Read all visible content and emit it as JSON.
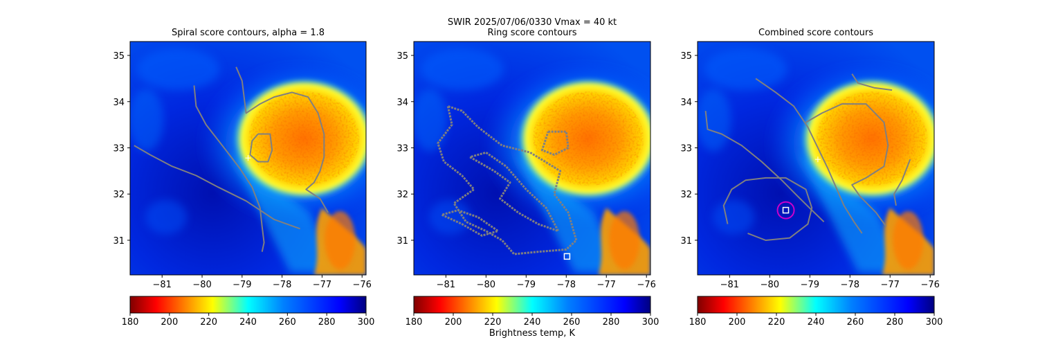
{
  "figure": {
    "suptitle_line1": "SWIR  2025/07/06/0330    Vmax = 40 kt",
    "colorbar_label": "Brightness temp, K"
  },
  "chart_data": [
    {
      "type": "heatmap",
      "title": "Spiral score contours, alpha =  1.8",
      "xlim": [
        -81.8,
        -75.9
      ],
      "ylim": [
        30.25,
        35.3
      ],
      "xticks": [
        -81,
        -80,
        -79,
        -78,
        -77,
        -76
      ],
      "yticks": [
        31,
        32,
        33,
        34,
        35
      ],
      "colorbar": {
        "range": [
          180,
          300
        ],
        "ticks": [
          180,
          200,
          220,
          240,
          260,
          280,
          300
        ],
        "colormap": "jet_r"
      },
      "contour_color": "#808080",
      "contours": [
        [
          [
            -80.2,
            34.35
          ],
          [
            -80.15,
            33.9
          ],
          [
            -79.9,
            33.5
          ],
          [
            -79.45,
            33.0
          ],
          [
            -79.05,
            32.55
          ],
          [
            -78.75,
            32.15
          ],
          [
            -78.55,
            31.7
          ],
          [
            -78.5,
            31.3
          ],
          [
            -78.45,
            30.95
          ],
          [
            -78.5,
            30.75
          ]
        ],
        [
          [
            -81.7,
            33.05
          ],
          [
            -81.3,
            32.85
          ],
          [
            -80.75,
            32.6
          ],
          [
            -80.15,
            32.4
          ],
          [
            -79.6,
            32.15
          ],
          [
            -78.9,
            31.85
          ],
          [
            -78.2,
            31.45
          ],
          [
            -77.55,
            31.25
          ]
        ],
        [
          [
            -79.15,
            34.75
          ],
          [
            -79.0,
            34.45
          ],
          [
            -78.95,
            34.1
          ],
          [
            -78.9,
            33.75
          ],
          [
            -78.55,
            33.95
          ],
          [
            -78.2,
            34.1
          ],
          [
            -77.75,
            34.2
          ],
          [
            -77.35,
            34.1
          ],
          [
            -77.1,
            33.75
          ],
          [
            -76.95,
            33.3
          ],
          [
            -76.95,
            32.8
          ],
          [
            -77.05,
            32.5
          ],
          [
            -77.2,
            32.25
          ],
          [
            -77.4,
            32.1
          ],
          [
            -77.05,
            31.9
          ],
          [
            -76.85,
            31.6
          ]
        ],
        [
          [
            -78.6,
            33.3
          ],
          [
            -78.3,
            33.3
          ],
          [
            -78.25,
            32.95
          ],
          [
            -78.35,
            32.7
          ],
          [
            -78.6,
            32.7
          ],
          [
            -78.8,
            32.85
          ],
          [
            -78.75,
            33.15
          ],
          [
            -78.6,
            33.3
          ]
        ]
      ],
      "markers": [
        {
          "shape": "plus",
          "x": -78.85,
          "y": 32.78,
          "color": "#ffffff"
        }
      ]
    },
    {
      "type": "heatmap",
      "title": "Ring score contours",
      "xlim": [
        -81.8,
        -75.9
      ],
      "ylim": [
        30.25,
        35.3
      ],
      "xticks": [
        -81,
        -80,
        -79,
        -78,
        -77,
        -76
      ],
      "yticks": [
        31,
        32,
        33,
        34,
        35
      ],
      "colorbar": {
        "range": [
          180,
          300
        ],
        "ticks": [
          180,
          200,
          220,
          240,
          260,
          280,
          300
        ],
        "colormap": "jet_r"
      },
      "contour_color": "#808080",
      "contours": [
        [
          [
            -80.95,
            33.9
          ],
          [
            -80.85,
            33.5
          ],
          [
            -81.2,
            33.1
          ],
          [
            -81.05,
            32.7
          ],
          [
            -80.6,
            32.4
          ],
          [
            -80.3,
            32.1
          ],
          [
            -80.8,
            31.8
          ],
          [
            -80.5,
            31.4
          ],
          [
            -80.0,
            31.2
          ],
          [
            -79.6,
            31.0
          ],
          [
            -79.3,
            30.7
          ],
          [
            -78.7,
            30.75
          ],
          [
            -78.0,
            30.8
          ],
          [
            -77.75,
            31.0
          ],
          [
            -77.95,
            31.6
          ],
          [
            -78.3,
            32.0
          ],
          [
            -78.15,
            32.5
          ],
          [
            -78.9,
            32.9
          ],
          [
            -79.6,
            33.05
          ],
          [
            -80.2,
            33.45
          ],
          [
            -80.6,
            33.8
          ],
          [
            -80.95,
            33.9
          ]
        ],
        [
          [
            -80.4,
            32.8
          ],
          [
            -79.8,
            32.5
          ],
          [
            -79.4,
            32.25
          ],
          [
            -79.65,
            31.9
          ],
          [
            -79.2,
            31.6
          ],
          [
            -78.7,
            31.35
          ],
          [
            -78.2,
            31.2
          ],
          [
            -78.5,
            31.7
          ],
          [
            -79.0,
            32.1
          ],
          [
            -79.5,
            32.6
          ],
          [
            -80.0,
            32.9
          ],
          [
            -80.4,
            32.8
          ]
        ],
        [
          [
            -78.45,
            33.35
          ],
          [
            -78.0,
            33.35
          ],
          [
            -77.95,
            33.0
          ],
          [
            -78.3,
            32.85
          ],
          [
            -78.6,
            32.95
          ],
          [
            -78.45,
            33.35
          ]
        ],
        [
          [
            -81.1,
            31.55
          ],
          [
            -80.6,
            31.35
          ],
          [
            -80.1,
            31.1
          ],
          [
            -79.7,
            31.2
          ],
          [
            -80.2,
            31.5
          ],
          [
            -80.7,
            31.65
          ],
          [
            -81.1,
            31.55
          ]
        ]
      ],
      "markers": [
        {
          "shape": "square",
          "x": -77.98,
          "y": 30.65,
          "color": "#ffffff"
        }
      ]
    },
    {
      "type": "heatmap",
      "title": "Combined score contours",
      "xlim": [
        -81.8,
        -75.9
      ],
      "ylim": [
        30.25,
        35.3
      ],
      "xticks": [
        -81,
        -80,
        -79,
        -78,
        -77,
        -76
      ],
      "yticks": [
        31,
        32,
        33,
        34,
        35
      ],
      "colorbar": {
        "range": [
          180,
          300
        ],
        "ticks": [
          180,
          200,
          220,
          240,
          260,
          280,
          300
        ],
        "colormap": "jet_r"
      },
      "contour_color": "#808080",
      "contours": [
        [
          [
            -80.35,
            34.5
          ],
          [
            -79.85,
            34.2
          ],
          [
            -79.4,
            33.9
          ],
          [
            -79.05,
            33.45
          ],
          [
            -78.8,
            33.0
          ],
          [
            -78.55,
            32.55
          ],
          [
            -78.35,
            32.15
          ],
          [
            -78.15,
            31.75
          ],
          [
            -77.9,
            31.4
          ],
          [
            -77.7,
            31.15
          ]
        ],
        [
          [
            -81.6,
            33.8
          ],
          [
            -81.55,
            33.4
          ],
          [
            -81.2,
            33.3
          ],
          [
            -80.7,
            33.05
          ],
          [
            -80.2,
            32.7
          ],
          [
            -79.7,
            32.3
          ],
          [
            -79.3,
            31.95
          ],
          [
            -78.95,
            31.65
          ],
          [
            -78.65,
            31.4
          ]
        ],
        [
          [
            -77.95,
            34.6
          ],
          [
            -77.8,
            34.4
          ],
          [
            -77.4,
            34.3
          ],
          [
            -76.95,
            34.25
          ]
        ],
        [
          [
            -79.1,
            33.55
          ],
          [
            -78.7,
            33.75
          ],
          [
            -78.2,
            33.95
          ],
          [
            -77.6,
            33.95
          ],
          [
            -77.15,
            33.55
          ],
          [
            -77.05,
            33.05
          ],
          [
            -77.15,
            32.6
          ],
          [
            -77.6,
            32.35
          ],
          [
            -77.95,
            32.2
          ],
          [
            -77.75,
            31.95
          ],
          [
            -77.35,
            31.6
          ],
          [
            -77.1,
            31.3
          ]
        ],
        [
          [
            -76.5,
            32.75
          ],
          [
            -76.7,
            32.3
          ],
          [
            -76.9,
            32.0
          ],
          [
            -76.85,
            31.75
          ]
        ],
        [
          [
            -81.05,
            31.35
          ],
          [
            -81.15,
            31.75
          ],
          [
            -80.95,
            32.1
          ],
          [
            -80.6,
            32.3
          ],
          [
            -80.1,
            32.35
          ],
          [
            -79.6,
            32.35
          ],
          [
            -79.1,
            32.1
          ],
          [
            -78.95,
            31.7
          ],
          [
            -79.05,
            31.35
          ],
          [
            -79.5,
            31.05
          ],
          [
            -80.1,
            31.0
          ],
          [
            -80.55,
            31.15
          ]
        ]
      ],
      "markers": [
        {
          "shape": "circle",
          "x": -79.6,
          "y": 31.65,
          "color": "#cc00cc"
        },
        {
          "shape": "square",
          "x": -79.6,
          "y": 31.65,
          "color": "#ffffff"
        },
        {
          "shape": "plus",
          "x": -78.8,
          "y": 32.75,
          "color": "#ffffff"
        }
      ]
    }
  ]
}
